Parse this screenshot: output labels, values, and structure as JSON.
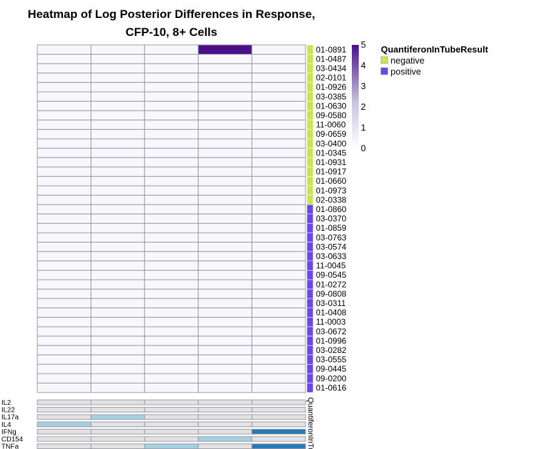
{
  "chart_data": {
    "type": "heatmap",
    "title": [
      "Heatmap of Log Posterior Differences in Response,",
      "CFP-10, 8+ Cells"
    ],
    "subjects": [
      "01-0891",
      "01-0487",
      "03-0434",
      "02-0101",
      "01-0926",
      "03-0385",
      "01-0630",
      "09-0580",
      "11-0060",
      "09-0659",
      "03-0400",
      "01-0345",
      "01-0931",
      "01-0917",
      "01-0660",
      "01-0973",
      "02-0338",
      "01-0860",
      "03-0370",
      "01-0859",
      "03-0763",
      "03-0574",
      "03-0633",
      "11-0045",
      "09-0545",
      "01-0272",
      "09-0808",
      "03-0311",
      "01-0408",
      "11-0003",
      "03-0672",
      "01-0996",
      "03-0282",
      "03-0555",
      "09-0445",
      "09-0200",
      "01-0616"
    ],
    "quantiferon": [
      "negative",
      "negative",
      "negative",
      "negative",
      "negative",
      "negative",
      "negative",
      "negative",
      "negative",
      "negative",
      "negative",
      "negative",
      "negative",
      "negative",
      "negative",
      "negative",
      "negative",
      "positive",
      "positive",
      "positive",
      "positive",
      "positive",
      "positive",
      "positive",
      "positive",
      "positive",
      "positive",
      "positive",
      "positive",
      "positive",
      "positive",
      "positive",
      "positive",
      "positive",
      "positive",
      "positive",
      "positive"
    ],
    "n_subsets": 5,
    "values": [
      [
        0,
        0,
        0,
        5,
        0
      ],
      [
        0,
        0,
        0,
        0,
        0
      ],
      [
        0,
        0,
        0,
        0,
        0
      ],
      [
        0,
        0,
        0,
        0,
        0
      ],
      [
        0,
        0,
        0,
        0,
        0
      ],
      [
        0,
        0,
        0,
        0,
        0
      ],
      [
        0,
        0,
        0,
        0,
        0
      ],
      [
        0,
        0,
        0,
        0,
        0
      ],
      [
        0,
        0,
        0,
        0,
        0
      ],
      [
        0,
        0,
        0,
        0,
        0
      ],
      [
        0,
        0,
        0,
        0,
        0
      ],
      [
        0,
        0,
        0,
        0,
        0
      ],
      [
        0,
        0,
        0,
        0,
        0
      ],
      [
        0,
        0,
        0,
        0,
        0
      ],
      [
        0,
        0,
        0,
        0,
        0
      ],
      [
        0,
        0,
        0,
        0,
        0
      ],
      [
        0,
        0,
        0,
        0,
        0
      ],
      [
        0,
        0,
        0,
        0,
        0
      ],
      [
        0,
        0,
        0,
        0,
        0
      ],
      [
        0,
        0,
        0,
        0,
        0
      ],
      [
        0,
        0,
        0,
        0,
        0
      ],
      [
        0,
        0,
        0,
        0,
        0
      ],
      [
        0,
        0,
        0,
        0,
        0
      ],
      [
        0,
        0,
        0,
        0,
        0
      ],
      [
        0,
        0,
        0,
        0,
        0
      ],
      [
        0,
        0,
        0,
        0,
        0
      ],
      [
        0,
        0,
        0,
        0,
        0
      ],
      [
        0,
        0,
        0,
        0,
        0
      ],
      [
        0,
        0,
        0,
        0,
        0
      ],
      [
        0,
        0,
        0,
        0,
        0
      ],
      [
        0,
        0,
        0,
        0,
        0
      ],
      [
        0,
        0,
        0,
        0,
        0
      ],
      [
        0,
        0,
        0,
        0,
        0
      ],
      [
        0,
        0,
        0,
        0,
        0
      ],
      [
        0,
        0,
        0,
        0,
        0
      ],
      [
        0,
        0,
        0,
        0,
        0
      ],
      [
        0,
        0,
        0,
        0,
        0
      ]
    ],
    "color_scale": {
      "min": 0,
      "max": 5,
      "ticks": [
        0,
        1,
        2,
        3,
        4,
        5
      ],
      "low_color": "#ffffff",
      "high_color": "#4b0f8a"
    },
    "annotation_legend": {
      "title": "QuantiferonInTubeResult",
      "entries": [
        {
          "label": "negative",
          "color": "#c8e64b"
        },
        {
          "label": "positive",
          "color": "#6a47e8"
        }
      ]
    },
    "annotation_axis_label": "QuantiferonInTu",
    "cytokines": [
      "IL2",
      "IL22",
      "IL17a",
      "IL4",
      "IFNg",
      "CD154",
      "TNFa"
    ],
    "cytokine_matrix": [
      [
        0,
        0,
        0,
        0,
        0
      ],
      [
        0,
        0,
        0,
        0,
        0
      ],
      [
        0,
        1,
        0,
        0,
        0
      ],
      [
        1,
        0,
        0,
        0,
        0
      ],
      [
        0,
        0,
        0,
        0,
        2
      ],
      [
        0,
        0,
        0,
        1,
        0
      ],
      [
        0,
        0,
        1,
        0,
        2
      ]
    ],
    "cytokine_colors": [
      "#e2e2e2",
      "#a6cfe3",
      "#2a78b4"
    ]
  }
}
